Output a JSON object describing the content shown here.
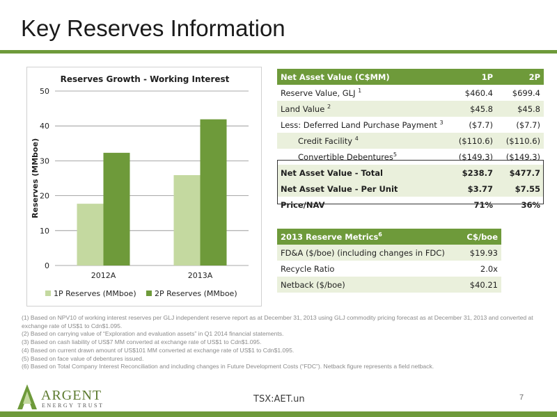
{
  "slide": {
    "title": "Key Reserves Information",
    "ticker": "TSX:AET.un",
    "page_number": "7",
    "logo": {
      "name": "ARGENT",
      "tagline": "ENERGY TRUST"
    }
  },
  "chart_data": {
    "type": "bar",
    "title": "Reserves Growth - Working Interest",
    "categories": [
      "2012A",
      "2013A"
    ],
    "series": [
      {
        "name": "1P Reserves (MMboe)",
        "values": [
          17.7,
          25.9
        ],
        "color": "#c4d9a0"
      },
      {
        "name": "2P Reserves (MMboe)",
        "values": [
          32.3,
          41.9
        ],
        "color": "#6e9a3a"
      }
    ],
    "xlabel": "",
    "ylabel": "Reserves (MMboe)",
    "ylim": [
      0,
      50
    ],
    "yticks": [
      "0",
      "10",
      "20",
      "30",
      "40",
      "50"
    ],
    "grid": true,
    "legend": "bottom"
  },
  "nav_table": {
    "header": {
      "label": "Net Asset Value (C$MM)",
      "col1": "1P",
      "col2": "2P"
    },
    "rows": [
      {
        "label": "Reserve Value, GLJ",
        "note": "1",
        "v1": "$460.4",
        "v2": "$699.4"
      },
      {
        "label": "Land Value",
        "note": "2",
        "v1": "$45.8",
        "v2": "$45.8"
      },
      {
        "label": "Less: Deferred Land Purchase Payment",
        "note": "3",
        "v1": "($7.7)",
        "v2": "($7.7)"
      },
      {
        "label": "Credit Facility",
        "note": "4",
        "v1": "($110.6)",
        "v2": "($110.6)"
      },
      {
        "label": "Convertible Debentures",
        "note": "5",
        "v1": "($149.3)",
        "v2": "($149.3)"
      }
    ],
    "totals": [
      {
        "label": "Net Asset Value - Total",
        "v1": "$238.7",
        "v2": "$477.7"
      },
      {
        "label": "Net Asset Value - Per Unit",
        "v1": "$3.77",
        "v2": "$7.55"
      },
      {
        "label": "Price/NAV",
        "v1": "71%",
        "v2": "36%"
      }
    ]
  },
  "metrics_table": {
    "header": {
      "label": "2013 Reserve Metrics",
      "note": "6",
      "col": "C$/boe"
    },
    "rows": [
      {
        "label": "FD&A ($/boe) (including changes in FDC)",
        "value": "$19.93"
      },
      {
        "label": "Recycle Ratio",
        "value": "2.0x"
      },
      {
        "label": "Netback ($/boe)",
        "value": "$40.21"
      }
    ]
  },
  "footnotes": [
    "(1) Based on NPV10 of working interest reserves per GLJ independent reserve report as at December 31, 2013 using GLJ commodity pricing forecast as at December 31, 2013 and converted at exchange rate of US$1 to Cdn$1.095.",
    "(2) Based on carrying value of “Exploration and evaluation assets” in Q1 2014 financial statements.",
    "(3) Based on cash liability of US$7 MM converted at exchange rate of US$1 to Cdn$1.095.",
    "(4) Based on current drawn amount of US$101 MM converted at exchange rate of US$1 to Cdn$1.095.",
    "(5) Based on face value of debentures issued.",
    "(6) Based on Total Company Interest Reconciliation and including changes in Future Development Costs (“FDC”). Netback figure represents a field netback."
  ]
}
